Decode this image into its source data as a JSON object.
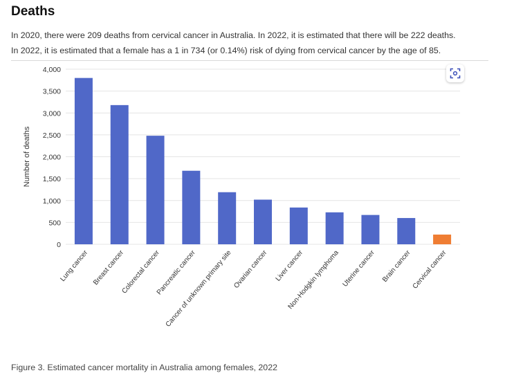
{
  "heading": "Deaths",
  "paragraphs": [
    "In 2020, there were 209 deaths from cervical cancer in Australia. In 2022, it is estimated that there will be 222 deaths.",
    "In 2022, it is estimated that a female has a 1 in 734 (or 0.14%) risk of dying from cervical cancer by the age of 85."
  ],
  "caption": "Figure 3. Estimated cancer mortality in Australia among females, 2022",
  "fullscreen_icon": "fullscreen-icon",
  "colors": {
    "primary": "#5068c8",
    "highlight": "#ef7d33",
    "grid": "#e4e4e4"
  },
  "chart_data": {
    "type": "bar",
    "title": "",
    "xlabel": "",
    "ylabel": "Number of deaths",
    "ylim": [
      0,
      4000
    ],
    "yticks": [
      0,
      500,
      1000,
      1500,
      2000,
      2500,
      3000,
      3500,
      4000
    ],
    "ytick_labels": [
      "0",
      "500",
      "1,000",
      "1,500",
      "2,000",
      "2,500",
      "3,000",
      "3,500",
      "4,000"
    ],
    "categories": [
      "Lung cancer",
      "Breast cancer",
      "Colorectal cancer",
      "Pancreatic cancer",
      "Cancer of unknown primary site",
      "Ovarian cancer",
      "Liver cancer",
      "Non-Hodgkin lymphoma",
      "Uterine cancer",
      "Brain cancer",
      "Cervical cancer"
    ],
    "values": [
      3800,
      3180,
      2480,
      1680,
      1190,
      1020,
      840,
      730,
      670,
      600,
      222
    ],
    "highlight_category": "Cervical cancer"
  }
}
